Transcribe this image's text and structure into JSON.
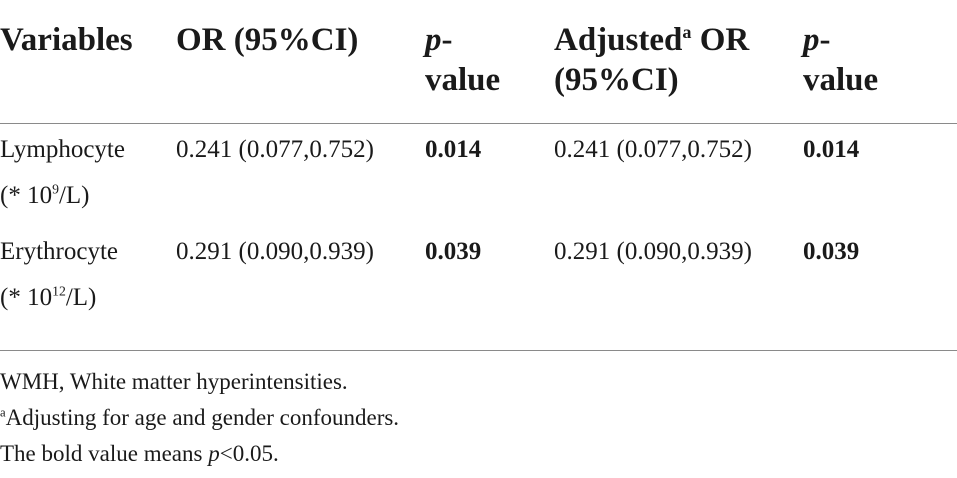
{
  "table": {
    "headers": {
      "variables": "Variables",
      "or": "OR (95%CI)",
      "p1_italic": "p",
      "p1_rest": "-",
      "p1_line2": "value",
      "adj_word": "Adjusted",
      "adj_sup": "a",
      "adj_rest": " OR",
      "adj_line2": "(95%CI)",
      "p2_italic": "p",
      "p2_rest": "-",
      "p2_line2": "value"
    },
    "rows": [
      {
        "var_line1": "Lymphocyte",
        "unit_prefix": "(* 10",
        "unit_sup": "9",
        "unit_suffix": "/L)",
        "or": "0.241 (0.077,0.752)",
        "p": "0.014",
        "adj_or": "0.241 (0.077,0.752)",
        "adj_p": "0.014"
      },
      {
        "var_line1": "Erythrocyte",
        "unit_prefix": "(* 10",
        "unit_sup": "12",
        "unit_suffix": "/L)",
        "or": "0.291 (0.090,0.939)",
        "p": "0.039",
        "adj_or": "0.291 (0.090,0.939)",
        "adj_p": "0.039"
      }
    ]
  },
  "footnotes": {
    "abbrev": "WMH, White matter hyperintensities.",
    "a_sup": "a",
    "a_text": "Adjusting for age and gender confounders.",
    "bold_prefix": "The bold value means ",
    "bold_italic": "p",
    "bold_suffix": "<0.05."
  }
}
